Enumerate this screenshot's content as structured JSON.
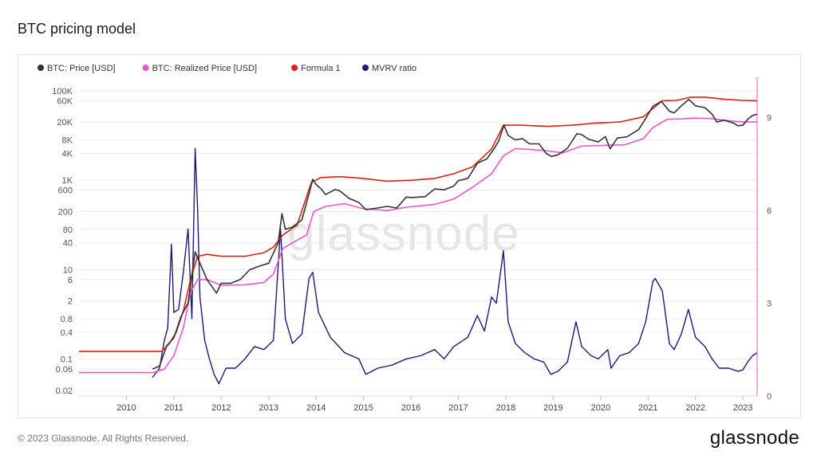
{
  "page": {
    "title": "BTC pricing model",
    "copyright": "© 2023 Glassnode. All Rights Reserved.",
    "logo_text": "glassnode",
    "watermark": "glassnode"
  },
  "colors": {
    "price": "#333333",
    "realized": "#ee55cc",
    "formula": "#dd2211",
    "mvrv": "#1f1a78",
    "grid": "#ececec"
  },
  "chart_data": {
    "type": "line",
    "legend": [
      {
        "label": "BTC: Price [USD]",
        "color": "#333333"
      },
      {
        "label": "BTC: Realized Price [USD]",
        "color": "#ee55cc"
      },
      {
        "label": "Formula 1",
        "color": "#dd2211"
      },
      {
        "label": "MVRV ratio",
        "color": "#1f1a78"
      }
    ],
    "legend_position": "top-left",
    "x_ticks": [
      "2010",
      "2011",
      "2012",
      "2013",
      "2014",
      "2015",
      "2016",
      "2017",
      "2018",
      "2019",
      "2020",
      "2021",
      "2022",
      "2023"
    ],
    "xlim": [
      2009.0,
      2023.3
    ],
    "y_left": {
      "scale": "log",
      "ylim": [
        0.015,
        200000
      ],
      "ticks": [
        {
          "v": 100000,
          "label": "100K"
        },
        {
          "v": 60000,
          "label": "60K"
        },
        {
          "v": 20000,
          "label": "20K"
        },
        {
          "v": 8000,
          "label": "8K"
        },
        {
          "v": 4000,
          "label": "4K"
        },
        {
          "v": 1000,
          "label": "1K"
        },
        {
          "v": 600,
          "label": "600"
        },
        {
          "v": 200,
          "label": "200"
        },
        {
          "v": 80,
          "label": "80"
        },
        {
          "v": 40,
          "label": "40"
        },
        {
          "v": 10,
          "label": "10"
        },
        {
          "v": 6,
          "label": "6"
        },
        {
          "v": 2,
          "label": "2"
        },
        {
          "v": 0.8,
          "label": "0.8"
        },
        {
          "v": 0.4,
          "label": "0.4"
        },
        {
          "v": 0.1,
          "label": "0.1"
        },
        {
          "v": 0.06,
          "label": "0.06"
        },
        {
          "v": 0.02,
          "label": "0.02"
        }
      ]
    },
    "y_right": {
      "scale": "linear",
      "ylim": [
        0,
        10.3
      ],
      "ticks": [
        {
          "v": 0,
          "label": "0"
        },
        {
          "v": 3,
          "label": "3"
        },
        {
          "v": 6,
          "label": "6"
        },
        {
          "v": 9,
          "label": "9"
        }
      ]
    },
    "grid": true,
    "series": [
      {
        "name": "BTC: Price [USD]",
        "axis": "left",
        "color": "#333333",
        "points": [
          [
            2010.55,
            0.06
          ],
          [
            2010.7,
            0.07
          ],
          [
            2010.85,
            0.2
          ],
          [
            2011.0,
            0.3
          ],
          [
            2011.15,
            0.9
          ],
          [
            2011.3,
            1.8
          ],
          [
            2011.45,
            25
          ],
          [
            2011.55,
            14
          ],
          [
            2011.7,
            6
          ],
          [
            2011.9,
            3
          ],
          [
            2012.0,
            5
          ],
          [
            2012.2,
            5
          ],
          [
            2012.4,
            6
          ],
          [
            2012.6,
            10
          ],
          [
            2012.8,
            12
          ],
          [
            2013.0,
            14
          ],
          [
            2013.2,
            40
          ],
          [
            2013.28,
            180
          ],
          [
            2013.35,
            80
          ],
          [
            2013.5,
            90
          ],
          [
            2013.7,
            130
          ],
          [
            2013.85,
            500
          ],
          [
            2013.93,
            1050
          ],
          [
            2014.0,
            800
          ],
          [
            2014.1,
            650
          ],
          [
            2014.2,
            480
          ],
          [
            2014.4,
            620
          ],
          [
            2014.5,
            580
          ],
          [
            2014.7,
            390
          ],
          [
            2014.9,
            320
          ],
          [
            2015.05,
            220
          ],
          [
            2015.3,
            240
          ],
          [
            2015.5,
            260
          ],
          [
            2015.7,
            240
          ],
          [
            2015.9,
            420
          ],
          [
            2016.0,
            410
          ],
          [
            2016.3,
            430
          ],
          [
            2016.5,
            640
          ],
          [
            2016.7,
            610
          ],
          [
            2016.9,
            740
          ],
          [
            2017.0,
            980
          ],
          [
            2017.2,
            1100
          ],
          [
            2017.4,
            2400
          ],
          [
            2017.6,
            3000
          ],
          [
            2017.75,
            5000
          ],
          [
            2017.85,
            7500
          ],
          [
            2017.96,
            17000
          ],
          [
            2018.05,
            10000
          ],
          [
            2018.2,
            8000
          ],
          [
            2018.35,
            8500
          ],
          [
            2018.5,
            6500
          ],
          [
            2018.7,
            6500
          ],
          [
            2018.85,
            4000
          ],
          [
            2018.96,
            3400
          ],
          [
            2019.1,
            3700
          ],
          [
            2019.3,
            5200
          ],
          [
            2019.5,
            11000
          ],
          [
            2019.6,
            10500
          ],
          [
            2019.75,
            8200
          ],
          [
            2019.95,
            7200
          ],
          [
            2020.1,
            9500
          ],
          [
            2020.2,
            5000
          ],
          [
            2020.35,
            8800
          ],
          [
            2020.55,
            9300
          ],
          [
            2020.8,
            13500
          ],
          [
            2020.95,
            24000
          ],
          [
            2021.1,
            45000
          ],
          [
            2021.28,
            58000
          ],
          [
            2021.45,
            35000
          ],
          [
            2021.55,
            32000
          ],
          [
            2021.7,
            46000
          ],
          [
            2021.86,
            64000
          ],
          [
            2022.0,
            46000
          ],
          [
            2022.2,
            42000
          ],
          [
            2022.35,
            30000
          ],
          [
            2022.45,
            20000
          ],
          [
            2022.6,
            22000
          ],
          [
            2022.8,
            19000
          ],
          [
            2022.9,
            16500
          ],
          [
            2023.0,
            17000
          ],
          [
            2023.1,
            23000
          ],
          [
            2023.2,
            28000
          ],
          [
            2023.3,
            30000
          ]
        ]
      },
      {
        "name": "BTC: Realized Price [USD]",
        "axis": "left",
        "color": "#ee55cc",
        "points": [
          [
            2009.0,
            0.05
          ],
          [
            2010.55,
            0.05
          ],
          [
            2010.8,
            0.06
          ],
          [
            2011.0,
            0.12
          ],
          [
            2011.2,
            0.5
          ],
          [
            2011.35,
            3
          ],
          [
            2011.5,
            6
          ],
          [
            2011.7,
            6
          ],
          [
            2012.0,
            4.5
          ],
          [
            2012.5,
            4.6
          ],
          [
            2012.9,
            5.2
          ],
          [
            2013.1,
            8
          ],
          [
            2013.3,
            30
          ],
          [
            2013.5,
            40
          ],
          [
            2013.8,
            60
          ],
          [
            2013.95,
            200
          ],
          [
            2014.2,
            260
          ],
          [
            2014.6,
            300
          ],
          [
            2015.0,
            230
          ],
          [
            2015.5,
            210
          ],
          [
            2015.9,
            250
          ],
          [
            2016.5,
            290
          ],
          [
            2016.9,
            380
          ],
          [
            2017.3,
            700
          ],
          [
            2017.7,
            1400
          ],
          [
            2017.95,
            3500
          ],
          [
            2018.2,
            5100
          ],
          [
            2018.5,
            4900
          ],
          [
            2018.9,
            4500
          ],
          [
            2019.2,
            4100
          ],
          [
            2019.6,
            5800
          ],
          [
            2020.0,
            6000
          ],
          [
            2020.5,
            6200
          ],
          [
            2020.9,
            8500
          ],
          [
            2021.1,
            15000
          ],
          [
            2021.4,
            23000
          ],
          [
            2021.7,
            23500
          ],
          [
            2021.95,
            24500
          ],
          [
            2022.3,
            24000
          ],
          [
            2022.6,
            22000
          ],
          [
            2023.0,
            20000
          ],
          [
            2023.3,
            20000
          ]
        ]
      },
      {
        "name": "Formula 1",
        "axis": "left",
        "color": "#dd2211",
        "points": [
          [
            2009.0,
            0.15
          ],
          [
            2010.75,
            0.15
          ],
          [
            2010.9,
            0.22
          ],
          [
            2011.05,
            0.4
          ],
          [
            2011.2,
            1.2
          ],
          [
            2011.35,
            6
          ],
          [
            2011.5,
            20
          ],
          [
            2011.7,
            22
          ],
          [
            2012.0,
            20
          ],
          [
            2012.5,
            20
          ],
          [
            2012.9,
            24
          ],
          [
            2013.1,
            32
          ],
          [
            2013.3,
            60
          ],
          [
            2013.6,
            100
          ],
          [
            2013.9,
            900
          ],
          [
            2014.1,
            1150
          ],
          [
            2014.5,
            1200
          ],
          [
            2015.0,
            1100
          ],
          [
            2015.5,
            950
          ],
          [
            2016.0,
            1000
          ],
          [
            2016.5,
            1100
          ],
          [
            2016.9,
            1400
          ],
          [
            2017.3,
            2000
          ],
          [
            2017.7,
            5000
          ],
          [
            2017.95,
            17000
          ],
          [
            2018.3,
            17000
          ],
          [
            2018.9,
            16000
          ],
          [
            2019.4,
            17000
          ],
          [
            2019.9,
            19000
          ],
          [
            2020.4,
            20000
          ],
          [
            2020.9,
            26000
          ],
          [
            2021.1,
            40000
          ],
          [
            2021.3,
            60000
          ],
          [
            2021.6,
            61000
          ],
          [
            2021.9,
            72000
          ],
          [
            2022.2,
            72000
          ],
          [
            2022.6,
            65000
          ],
          [
            2023.0,
            61000
          ],
          [
            2023.3,
            60000
          ]
        ]
      },
      {
        "name": "MVRV ratio",
        "axis": "right",
        "color": "#1f1a78",
        "points": [
          [
            2010.55,
            0.6
          ],
          [
            2010.7,
            0.9
          ],
          [
            2010.8,
            1.8
          ],
          [
            2010.87,
            2.2
          ],
          [
            2010.95,
            4.9
          ],
          [
            2011.0,
            2.7
          ],
          [
            2011.1,
            2.8
          ],
          [
            2011.2,
            4.0
          ],
          [
            2011.3,
            5.4
          ],
          [
            2011.38,
            2.5
          ],
          [
            2011.45,
            8.0
          ],
          [
            2011.5,
            6.1
          ],
          [
            2011.55,
            3.2
          ],
          [
            2011.65,
            1.8
          ],
          [
            2011.75,
            1.2
          ],
          [
            2011.85,
            0.7
          ],
          [
            2011.95,
            0.4
          ],
          [
            2012.1,
            0.9
          ],
          [
            2012.3,
            0.9
          ],
          [
            2012.5,
            1.2
          ],
          [
            2012.7,
            1.6
          ],
          [
            2012.9,
            1.5
          ],
          [
            2013.1,
            1.8
          ],
          [
            2013.25,
            5.4
          ],
          [
            2013.35,
            2.5
          ],
          [
            2013.5,
            1.7
          ],
          [
            2013.7,
            2.0
          ],
          [
            2013.85,
            3.8
          ],
          [
            2013.93,
            4.0
          ],
          [
            2014.05,
            2.7
          ],
          [
            2014.3,
            1.9
          ],
          [
            2014.6,
            1.4
          ],
          [
            2014.9,
            1.2
          ],
          [
            2015.05,
            0.7
          ],
          [
            2015.3,
            0.9
          ],
          [
            2015.6,
            1.0
          ],
          [
            2015.9,
            1.2
          ],
          [
            2016.2,
            1.3
          ],
          [
            2016.5,
            1.5
          ],
          [
            2016.7,
            1.2
          ],
          [
            2016.9,
            1.6
          ],
          [
            2017.2,
            1.9
          ],
          [
            2017.4,
            2.6
          ],
          [
            2017.55,
            2.1
          ],
          [
            2017.7,
            3.2
          ],
          [
            2017.8,
            3.0
          ],
          [
            2017.95,
            4.7
          ],
          [
            2018.05,
            2.4
          ],
          [
            2018.2,
            1.7
          ],
          [
            2018.4,
            1.4
          ],
          [
            2018.6,
            1.2
          ],
          [
            2018.8,
            1.1
          ],
          [
            2018.95,
            0.7
          ],
          [
            2019.1,
            0.8
          ],
          [
            2019.3,
            1.1
          ],
          [
            2019.48,
            2.4
          ],
          [
            2019.6,
            1.6
          ],
          [
            2019.8,
            1.3
          ],
          [
            2019.95,
            1.2
          ],
          [
            2020.15,
            1.5
          ],
          [
            2020.22,
            0.9
          ],
          [
            2020.4,
            1.3
          ],
          [
            2020.6,
            1.4
          ],
          [
            2020.8,
            1.7
          ],
          [
            2020.95,
            2.4
          ],
          [
            2021.1,
            3.7
          ],
          [
            2021.15,
            3.8
          ],
          [
            2021.3,
            3.4
          ],
          [
            2021.45,
            1.7
          ],
          [
            2021.55,
            1.5
          ],
          [
            2021.7,
            2.0
          ],
          [
            2021.85,
            2.8
          ],
          [
            2022.0,
            1.9
          ],
          [
            2022.2,
            1.6
          ],
          [
            2022.35,
            1.2
          ],
          [
            2022.5,
            0.9
          ],
          [
            2022.7,
            0.9
          ],
          [
            2022.9,
            0.8
          ],
          [
            2023.0,
            0.85
          ],
          [
            2023.1,
            1.1
          ],
          [
            2023.2,
            1.3
          ],
          [
            2023.3,
            1.4
          ]
        ]
      }
    ]
  }
}
